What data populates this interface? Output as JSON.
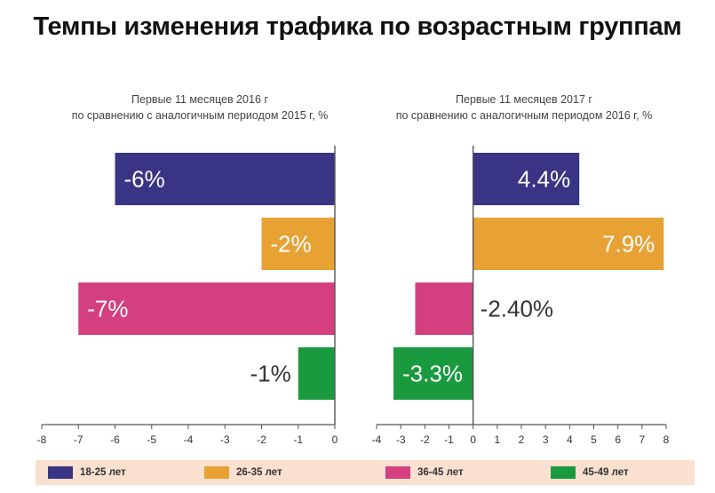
{
  "title": "Темпы изменения трафика по возрастным группам",
  "colors": {
    "s1": "#3a3485",
    "s2": "#e8a234",
    "s3": "#d43f7f",
    "s4": "#1a9a3f"
  },
  "chart_data": [
    {
      "type": "bar",
      "orientation": "horizontal",
      "subtitle_line1": "Первые 11 месяцев 2016 г",
      "subtitle_line2": "по сравнению с аналогичным периодом 2015 г, %",
      "categories": [
        "18-25 лет",
        "26-35 лет",
        "36-45 лет",
        "45-49 лет"
      ],
      "values": [
        -6,
        -2,
        -7,
        -1
      ],
      "labels": [
        "-6%",
        "-2%",
        "-7%",
        "-1%"
      ],
      "xlim": [
        -8,
        0
      ],
      "ticks": [
        "-8",
        "-7",
        "-6",
        "-5",
        "-4",
        "-3",
        "-2",
        "-1",
        "0"
      ]
    },
    {
      "type": "bar",
      "orientation": "horizontal",
      "subtitle_line1": "Первые 11 месяцев 2017 г",
      "subtitle_line2": "по сравнению с аналогичным периодом 2016 г, %",
      "categories": [
        "18-25 лет",
        "26-35 лет",
        "36-45 лет",
        "45-49 лет"
      ],
      "values": [
        4.4,
        7.9,
        -2.4,
        -3.3
      ],
      "labels": [
        "4.4%",
        "7.9%",
        "-2.40%",
        "-3.3%"
      ],
      "xlim": [
        -4,
        8
      ],
      "ticks": [
        "-4",
        "-3",
        "-2",
        "-1",
        "0",
        "1",
        "2",
        "3",
        "4",
        "5",
        "6",
        "7",
        "8"
      ]
    }
  ],
  "legend": [
    {
      "label": "18-25 лет",
      "color": "#3a3485"
    },
    {
      "label": "26-35 лет",
      "color": "#e8a234"
    },
    {
      "label": "36-45 лет",
      "color": "#d43f7f"
    },
    {
      "label": "45-49 лет",
      "color": "#1a9a3f"
    }
  ]
}
